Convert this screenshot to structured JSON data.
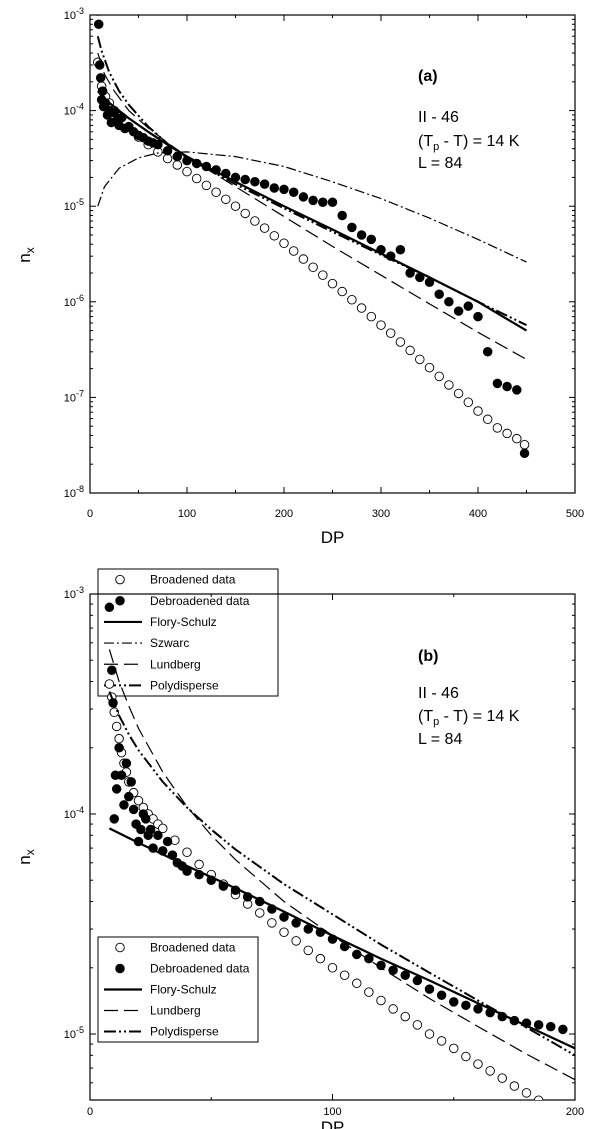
{
  "chart_data": [
    {
      "type": "scatter",
      "panel_label": "(a)",
      "annotation": [
        "II - 46",
        "(T",
        "p",
        " - T) = 14 K",
        "L = 84"
      ],
      "xlabel": "DP",
      "ylabel": "n",
      "ylabel_sub": "x",
      "xlim": [
        0,
        500
      ],
      "ylim_log10": [
        -8,
        -3
      ],
      "y_scale": "log",
      "x_ticks": [
        "0",
        "100",
        "200",
        "300",
        "400",
        "500"
      ],
      "y_ticks": [
        {
          "base": "10",
          "exp": "-8"
        },
        {
          "base": "10",
          "exp": "-7"
        },
        {
          "base": "10",
          "exp": "-6"
        },
        {
          "base": "10",
          "exp": "-5"
        },
        {
          "base": "10",
          "exp": "-4"
        },
        {
          "base": "10",
          "exp": "-3"
        }
      ],
      "legend_position": "bottom-left",
      "series": [
        {
          "name": "Broadened data",
          "style": "open-circle",
          "x": [
            8,
            12,
            16,
            20,
            25,
            30,
            40,
            50,
            60,
            70,
            80,
            90,
            100,
            110,
            120,
            130,
            140,
            150,
            160,
            170,
            180,
            190,
            200,
            210,
            220,
            230,
            240,
            250,
            260,
            270,
            280,
            290,
            300,
            310,
            320,
            330,
            340,
            350,
            360,
            370,
            380,
            390,
            400,
            410,
            420,
            430,
            440,
            448
          ],
          "y": [
            0.00032,
            0.00018,
            0.00014,
            0.00012,
            0.0001,
            8.6e-05,
            6.7e-05,
            5.3e-05,
            4.4e-05,
            3.7e-05,
            3.15e-05,
            2.7e-05,
            2.3e-05,
            1.95e-05,
            1.65e-05,
            1.4e-05,
            1.18e-05,
            1e-05,
            8.4e-06,
            7e-06,
            5.9e-06,
            4.9e-06,
            4.1e-06,
            3.4e-06,
            2.8e-06,
            2.3e-06,
            1.9e-06,
            1.55e-06,
            1.28e-06,
            1.05e-06,
            8.6e-07,
            7e-07,
            5.7e-07,
            4.7e-07,
            3.8e-07,
            3.1e-07,
            2.5e-07,
            2.05e-07,
            1.66e-07,
            1.35e-07,
            1.1e-07,
            8.9e-08,
            7.2e-08,
            5.9e-08,
            4.8e-08,
            4.2e-08,
            3.7e-08,
            3.2e-08
          ]
        },
        {
          "name": "Debroadened data",
          "style": "filled-circle",
          "x": [
            8,
            9,
            10,
            11,
            12,
            13,
            14,
            16,
            18,
            20,
            22,
            25,
            28,
            30,
            33,
            36,
            40,
            45,
            50,
            55,
            60,
            65,
            70,
            80,
            90,
            100,
            110,
            120,
            130,
            140,
            150,
            160,
            170,
            180,
            190,
            200,
            210,
            220,
            230,
            240,
            250,
            260,
            270,
            280,
            290,
            300,
            310,
            320,
            330,
            340,
            350,
            360,
            370,
            380,
            390,
            400,
            410,
            420,
            430,
            440,
            448
          ],
          "y": [
            0.0011,
            0.0008,
            0.0003,
            0.00022,
            0.00013,
            0.00016,
            0.00011,
            0.00012,
            9e-05,
            0.0001,
            7.5e-05,
            9.5e-05,
            8e-05,
            7e-05,
            8.5e-05,
            6.5e-05,
            6.8e-05,
            6e-05,
            5.5e-05,
            5.2e-05,
            4.8e-05,
            4.6e-05,
            4.4e-05,
            3.8e-05,
            3.3e-05,
            3e-05,
            2.8e-05,
            2.6e-05,
            2.4e-05,
            2.2e-05,
            2e-05,
            1.9e-05,
            1.8e-05,
            1.7e-05,
            1.55e-05,
            1.5e-05,
            1.4e-05,
            1.25e-05,
            1.15e-05,
            1.1e-05,
            1.1e-05,
            8e-06,
            6e-06,
            5e-06,
            4.5e-06,
            3.5e-06,
            3e-06,
            3.5e-06,
            2e-06,
            1.8e-06,
            1.6e-06,
            1.2e-06,
            1e-06,
            8e-07,
            9e-07,
            7e-07,
            3e-07,
            1.4e-07,
            1.3e-07,
            1.2e-07,
            2.6e-08
          ]
        },
        {
          "name": "Flory-Schulz",
          "style": "solid",
          "x": [
            8,
            20,
            40,
            60,
            80,
            100,
            150,
            200,
            250,
            300,
            350,
            400,
            450
          ],
          "y": [
            0.00016,
            0.00012,
            8.3e-05,
            6e-05,
            4.4e-05,
            3.3e-05,
            1.8e-05,
            1e-05,
            5.7e-06,
            3.2e-06,
            1.8e-06,
            1e-06,
            5e-07
          ]
        },
        {
          "name": "Szwarc",
          "style": "dash-dot",
          "x": [
            8,
            15,
            30,
            50,
            70,
            100,
            150,
            200,
            250,
            300,
            350,
            400,
            450
          ],
          "y": [
            1e-05,
            1.6e-05,
            2.5e-05,
            3.2e-05,
            3.6e-05,
            3.7e-05,
            3.3e-05,
            2.6e-05,
            1.8e-05,
            1.2e-05,
            7.5e-06,
            4.5e-06,
            2.6e-06
          ]
        },
        {
          "name": "Lundberg",
          "style": "long-dash",
          "x": [
            8,
            15,
            25,
            40,
            60,
            80,
            100,
            150,
            200,
            250,
            300,
            350,
            400,
            450
          ],
          "y": [
            0.0004,
            0.00024,
            0.00016,
            0.0001,
            6.6e-05,
            4.6e-05,
            3.3e-05,
            1.6e-05,
            7.8e-06,
            3.8e-06,
            1.9e-06,
            9.5e-07,
            4.8e-07,
            2.5e-07
          ]
        },
        {
          "name": "Polydisperse",
          "style": "dash-dot-dot",
          "x": [
            8,
            12,
            20,
            30,
            40,
            60,
            80,
            100,
            150,
            200,
            250,
            300,
            350,
            400,
            450
          ],
          "y": [
            0.0006,
            0.00042,
            0.00025,
            0.00016,
            0.000115,
            6.8e-05,
            4.5e-05,
            3.2e-05,
            1.7e-05,
            9.5e-06,
            5.4e-06,
            3.1e-06,
            1.8e-06,
            1e-06,
            5.7e-07
          ]
        }
      ]
    },
    {
      "type": "scatter",
      "panel_label": "(b)",
      "annotation": [
        "II - 46",
        "(T",
        "p",
        " - T) = 14 K",
        "L = 84"
      ],
      "xlabel": "DP",
      "ylabel": "n",
      "ylabel_sub": "x",
      "xlim": [
        0,
        200
      ],
      "ylim_log10": [
        -5.3,
        -3
      ],
      "y_scale": "log",
      "x_ticks": [
        "0",
        "100",
        "200"
      ],
      "y_ticks": [
        {
          "base": "10",
          "exp": "-5"
        },
        {
          "base": "10",
          "exp": "-4"
        },
        {
          "base": "10",
          "exp": "-3"
        }
      ],
      "legend_position": "bottom-left",
      "series": [
        {
          "name": "Broadened data",
          "style": "open-circle",
          "x": [
            8,
            9,
            10,
            11,
            12,
            13,
            14,
            15,
            16,
            18,
            20,
            22,
            24,
            26,
            28,
            30,
            35,
            40,
            45,
            50,
            55,
            60,
            65,
            70,
            75,
            80,
            85,
            90,
            95,
            100,
            105,
            110,
            115,
            120,
            125,
            130,
            135,
            140,
            145,
            150,
            155,
            160,
            165,
            170,
            175,
            180,
            185,
            190,
            195
          ],
          "y": [
            0.00039,
            0.00034,
            0.00029,
            0.00025,
            0.00022,
            0.00019,
            0.00017,
            0.000155,
            0.00014,
            0.000125,
            0.000115,
            0.000107,
            0.0001,
            9.5e-05,
            9e-05,
            8.6e-05,
            7.6e-05,
            6.7e-05,
            5.9e-05,
            5.3e-05,
            4.8e-05,
            4.3e-05,
            3.9e-05,
            3.55e-05,
            3.2e-05,
            2.9e-05,
            2.65e-05,
            2.4e-05,
            2.2e-05,
            2e-05,
            1.85e-05,
            1.7e-05,
            1.55e-05,
            1.42e-05,
            1.3e-05,
            1.2e-05,
            1.1e-05,
            1e-05,
            9.3e-06,
            8.6e-06,
            7.9e-06,
            7.3e-06,
            6.8e-06,
            6.3e-06,
            5.8e-06,
            5.4e-06,
            5e-06,
            4.7e-06,
            4.4e-06
          ]
        },
        {
          "name": "Debroadened data",
          "style": "filled-circle",
          "x": [
            8,
            9,
            9.5,
            10,
            10.5,
            11,
            12,
            13,
            14,
            15,
            16,
            17,
            18,
            19,
            20,
            21,
            22,
            23,
            24,
            25,
            26,
            28,
            30,
            32,
            34,
            36,
            38,
            40,
            45,
            50,
            55,
            60,
            65,
            70,
            75,
            80,
            85,
            90,
            95,
            100,
            105,
            110,
            115,
            120,
            125,
            130,
            135,
            140,
            145,
            150,
            155,
            160,
            165,
            170,
            175,
            180,
            185,
            190,
            195
          ],
          "y": [
            0.00087,
            0.00045,
            0.00032,
            9.5e-05,
            0.00015,
            0.00013,
            0.0002,
            0.00015,
            0.00011,
            0.00017,
            0.00012,
            0.00014,
            0.000105,
            9e-05,
            7.5e-05,
            8.5e-05,
            0.0001,
            9.5e-05,
            8e-05,
            8.5e-05,
            7e-05,
            8e-05,
            6.8e-05,
            7.5e-05,
            6.5e-05,
            6e-05,
            5.8e-05,
            5.5e-05,
            5.3e-05,
            5e-05,
            4.7e-05,
            4.5e-05,
            4.2e-05,
            4e-05,
            3.7e-05,
            3.4e-05,
            3.2e-05,
            3e-05,
            2.9e-05,
            2.7e-05,
            2.5e-05,
            2.3e-05,
            2.2e-05,
            2.05e-05,
            1.95e-05,
            1.85e-05,
            1.75e-05,
            1.6e-05,
            1.5e-05,
            1.4e-05,
            1.35e-05,
            1.3e-05,
            1.25e-05,
            1.2e-05,
            1.15e-05,
            1.12e-05,
            1.1e-05,
            1.08e-05,
            1.05e-05
          ]
        },
        {
          "name": "Flory-Schulz",
          "style": "solid",
          "x": [
            8,
            20,
            40,
            60,
            80,
            100,
            120,
            140,
            160,
            180,
            200
          ],
          "y": [
            8.6e-05,
            7.4e-05,
            5.8e-05,
            4.6e-05,
            3.6e-05,
            2.8e-05,
            2.2e-05,
            1.75e-05,
            1.38e-05,
            1.09e-05,
            8.6e-06
          ]
        },
        {
          "name": "Lundberg",
          "style": "long-dash",
          "x": [
            8,
            12,
            16,
            20,
            30,
            40,
            50,
            60,
            80,
            100,
            120,
            140,
            160,
            180,
            200
          ],
          "y": [
            0.00056,
            0.0004,
            0.00031,
            0.000245,
            0.000155,
            0.000108,
            8e-05,
            6.2e-05,
            4e-05,
            2.8e-05,
            2e-05,
            1.45e-05,
            1.08e-05,
            8.1e-06,
            6.2e-06
          ]
        },
        {
          "name": "Polydisperse",
          "style": "dash-dot-dot",
          "x": [
            8,
            12,
            16,
            20,
            30,
            40,
            50,
            60,
            80,
            100,
            120,
            140,
            160,
            180,
            200
          ],
          "y": [
            0.00036,
            0.00028,
            0.00023,
            0.000195,
            0.00014,
            0.000107,
            8.5e-05,
            6.9e-05,
            4.8e-05,
            3.5e-05,
            2.55e-05,
            1.9e-05,
            1.42e-05,
            1.07e-05,
            8e-06
          ]
        }
      ]
    }
  ]
}
